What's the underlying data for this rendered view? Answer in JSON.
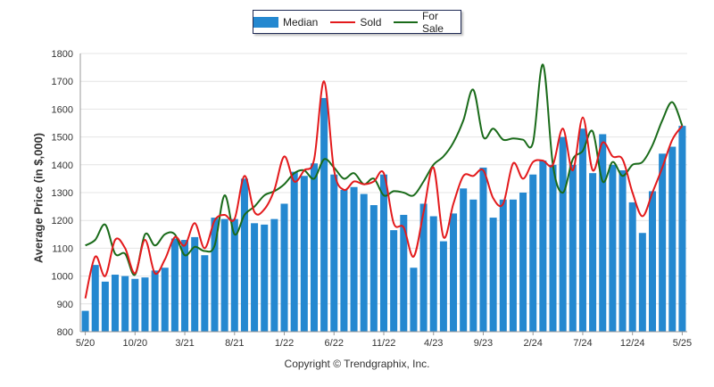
{
  "legend": {
    "median_label": "Median",
    "sold_label": "Sold",
    "forsale_label": "For Sale"
  },
  "copyright": "Copyright © Trendgraphix, Inc.",
  "colors": {
    "median": "#2488d0",
    "sold": "#e31a1c",
    "forsale": "#1a6b1a",
    "grid": "#e4e4e4",
    "axis": "#999999"
  },
  "chart_data": {
    "type": "bar",
    "title": "",
    "ylabel": "Average Price (in $,000)",
    "xlabel": "",
    "ylim": [
      800,
      1800
    ],
    "yticks": [
      800,
      900,
      1000,
      1100,
      1200,
      1300,
      1400,
      1500,
      1600,
      1700,
      1800
    ],
    "xtick_labels": [
      {
        "index": 0,
        "label": "5/20"
      },
      {
        "index": 5,
        "label": "10/20"
      },
      {
        "index": 10,
        "label": "3/21"
      },
      {
        "index": 15,
        "label": "8/21"
      },
      {
        "index": 20,
        "label": "1/22"
      },
      {
        "index": 25,
        "label": "6/22"
      },
      {
        "index": 30,
        "label": "11/22"
      },
      {
        "index": 35,
        "label": "4/23"
      },
      {
        "index": 40,
        "label": "9/23"
      },
      {
        "index": 45,
        "label": "2/24"
      },
      {
        "index": 50,
        "label": "7/24"
      },
      {
        "index": 55,
        "label": "12/24"
      },
      {
        "index": 60,
        "label": "5/25"
      }
    ],
    "grid": true,
    "legend_position": "top-center",
    "series": [
      {
        "name": "Median",
        "type": "bar",
        "values": [
          875,
          1040,
          980,
          1005,
          1000,
          990,
          995,
          1020,
          1030,
          1135,
          1130,
          1140,
          1075,
          1210,
          1205,
          1205,
          1350,
          1190,
          1185,
          1205,
          1260,
          1375,
          1360,
          1405,
          1640,
          1365,
          1310,
          1320,
          1295,
          1255,
          1365,
          1165,
          1220,
          1030,
          1260,
          1215,
          1125,
          1225,
          1315,
          1275,
          1390,
          1210,
          1275,
          1275,
          1300,
          1365,
          1415,
          1400,
          1500,
          1400,
          1530,
          1370,
          1510,
          1400,
          1380,
          1265,
          1155,
          1305,
          1440,
          1465,
          1540
        ]
      },
      {
        "name": "Sold",
        "type": "line",
        "values": [
          920,
          1070,
          1000,
          1130,
          1100,
          1010,
          1130,
          1010,
          1060,
          1140,
          1110,
          1190,
          1100,
          1200,
          1220,
          1205,
          1360,
          1230,
          1240,
          1310,
          1430,
          1340,
          1380,
          1420,
          1700,
          1380,
          1310,
          1340,
          1330,
          1340,
          1370,
          1190,
          1175,
          1070,
          1230,
          1390,
          1140,
          1260,
          1360,
          1360,
          1380,
          1280,
          1260,
          1405,
          1350,
          1410,
          1415,
          1400,
          1530,
          1380,
          1570,
          1380,
          1480,
          1430,
          1420,
          1300,
          1215,
          1300,
          1390,
          1490,
          1540
        ]
      },
      {
        "name": "For Sale",
        "type": "line",
        "values": [
          1110,
          1130,
          1185,
          1080,
          1080,
          1005,
          1150,
          1110,
          1150,
          1150,
          1075,
          1105,
          1090,
          1110,
          1290,
          1150,
          1220,
          1250,
          1290,
          1305,
          1330,
          1370,
          1380,
          1350,
          1420,
          1390,
          1350,
          1370,
          1330,
          1350,
          1290,
          1305,
          1300,
          1290,
          1340,
          1400,
          1430,
          1480,
          1560,
          1670,
          1500,
          1530,
          1490,
          1495,
          1490,
          1480,
          1760,
          1400,
          1300,
          1420,
          1450,
          1520,
          1340,
          1410,
          1360,
          1400,
          1410,
          1470,
          1560,
          1625,
          1540
        ]
      }
    ]
  }
}
